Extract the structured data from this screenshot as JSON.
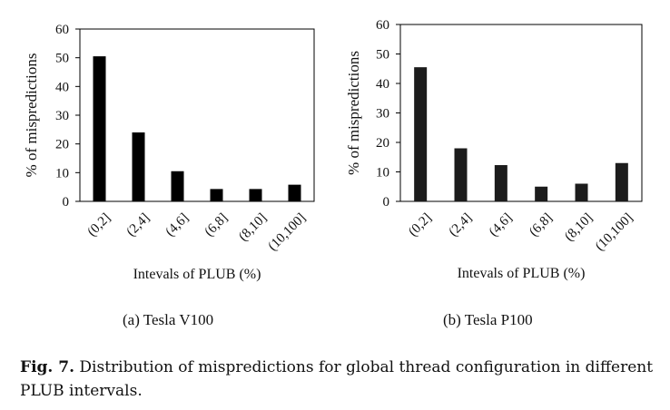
{
  "chart_data": [
    {
      "type": "bar",
      "categories": [
        "(0,2]",
        "(2,4]",
        "(4,6]",
        "(6,8]",
        "(8,10]",
        "(10,100]"
      ],
      "values": [
        50.5,
        24,
        10.5,
        4.3,
        4.3,
        5.8
      ],
      "title": "",
      "xlabel": "Intevals of PLUB (%)",
      "ylabel": "% of mispredictions",
      "ylim": [
        0,
        60
      ],
      "yticks": [
        0,
        10,
        20,
        30,
        40,
        50,
        60
      ],
      "grid": false,
      "bar_color": "#000000",
      "subcaption": "(a) Tesla V100"
    },
    {
      "type": "bar",
      "categories": [
        "(0,2]",
        "(2,4]",
        "(4,6]",
        "(6,8]",
        "(8,10]",
        "(10,100]"
      ],
      "values": [
        45.5,
        18,
        12.3,
        5,
        6,
        13
      ],
      "title": "",
      "xlabel": "Intevals of PLUB (%)",
      "ylabel": "% of mispredictions",
      "ylim": [
        0,
        60
      ],
      "yticks": [
        0,
        10,
        20,
        30,
        40,
        50,
        60
      ],
      "grid": false,
      "bar_color": "#1c1c1c",
      "subcaption": "(b) Tesla P100"
    }
  ],
  "caption": {
    "label": "Fig. 7.",
    "text": " Distribution of mispredictions for global thread configuration in different PLUB intervals."
  }
}
